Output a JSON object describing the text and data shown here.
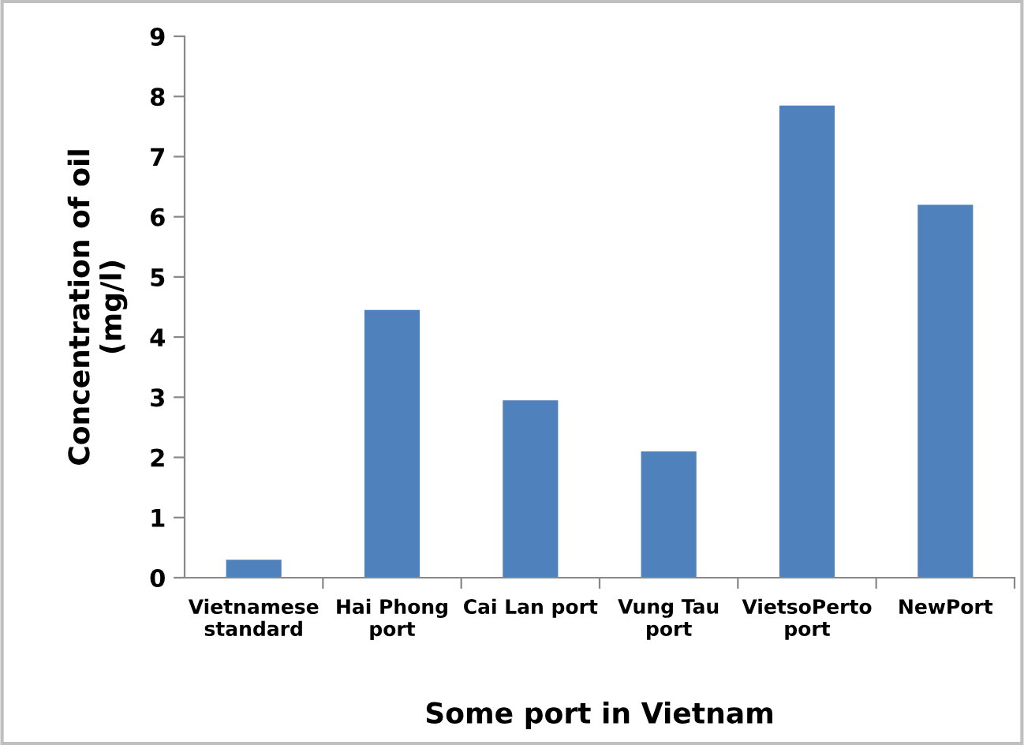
{
  "chart_data": {
    "type": "bar",
    "xlabel": "Some port in Vietnam",
    "ylabel": "Concentration of oil\n(mg/l)",
    "categories": [
      "Vietnamese\nstandard",
      "Hai Phong\nport",
      "Cai Lan port",
      "Vung Tau\nport",
      "VietsoPerto\nport",
      "NewPort"
    ],
    "values": [
      0.3,
      4.45,
      2.95,
      2.1,
      7.85,
      6.2
    ],
    "color": "#4f81bd",
    "ylim": [
      0,
      9
    ],
    "yticks": [
      0,
      1,
      2,
      3,
      4,
      5,
      6,
      7,
      8,
      9
    ],
    "grid": false,
    "legend": false
  }
}
